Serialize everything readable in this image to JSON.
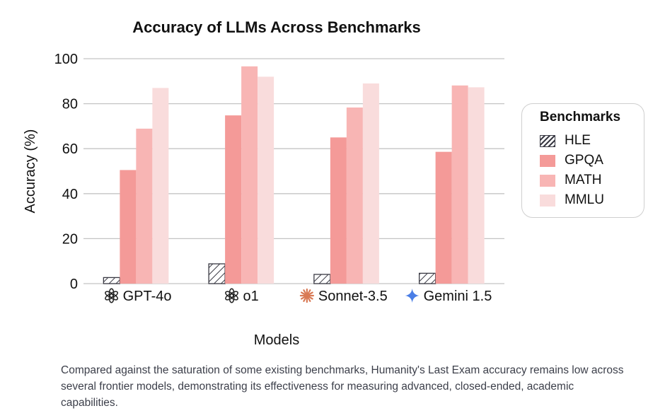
{
  "chart_data": {
    "type": "bar",
    "title": "Accuracy of LLMs Across Benchmarks",
    "xlabel": "Models",
    "ylabel": "Accuracy (%)",
    "ylim": [
      0,
      100
    ],
    "yticks": [
      0,
      20,
      40,
      60,
      80,
      100
    ],
    "grid": true,
    "legend_title": "Benchmarks",
    "legend_placement": "right",
    "categories": [
      "GPT-4o",
      "o1",
      "Sonnet-3.5",
      "Gemini 1.5"
    ],
    "category_icons": [
      "openai-icon",
      "openai-icon",
      "anthropic-icon",
      "gemini-icon"
    ],
    "series": [
      {
        "name": "HLE",
        "values": [
          2.7,
          8.8,
          4.1,
          4.6
        ],
        "color": "#ffffff",
        "pattern": "hatch"
      },
      {
        "name": "GPQA",
        "values": [
          50.5,
          74.8,
          65.0,
          58.6
        ],
        "color": "#f49a98"
      },
      {
        "name": "MATH",
        "values": [
          68.9,
          96.6,
          78.3,
          88.1
        ],
        "color": "#f8b5b4"
      },
      {
        "name": "MMLU",
        "values": [
          87.0,
          92.0,
          89.0,
          87.3
        ],
        "color": "#f9dcdc"
      }
    ]
  },
  "caption": "Compared against the saturation of some existing benchmarks, Humanity's Last Exam accuracy remains low across several frontier models, demonstrating its effectiveness for measuring advanced, closed-ended, academic capabilities."
}
